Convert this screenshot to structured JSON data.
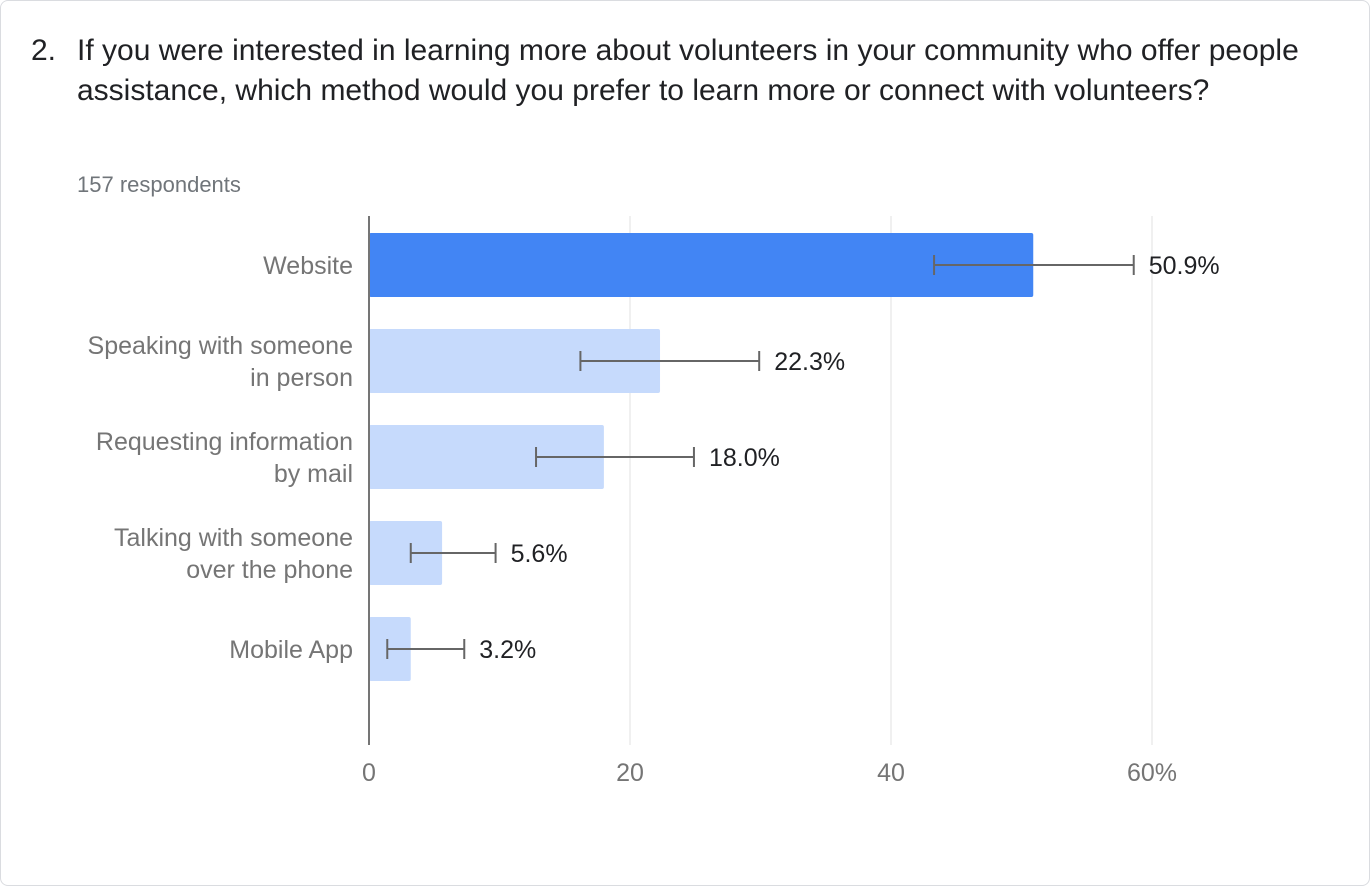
{
  "question": {
    "number": "2.",
    "text": "If you were interested in learning more about volunteers in your community who offer people assistance, which method would you prefer to learn more or connect with volunteers?"
  },
  "respondents": "157 respondents",
  "colors": {
    "highlight_bar": "#4285f4",
    "bar": "#c6dafc",
    "gridline": "#e0e0e0",
    "axis": "#757575",
    "error_bar": "#666666"
  },
  "chart_data": {
    "type": "bar",
    "orientation": "horizontal",
    "categories": [
      [
        "Website"
      ],
      [
        "Speaking with someone",
        "in person"
      ],
      [
        "Requesting information",
        "by mail"
      ],
      [
        "Talking with someone",
        "over the phone"
      ],
      [
        "Mobile App"
      ]
    ],
    "values": [
      50.9,
      22.3,
      18.0,
      5.6,
      3.2
    ],
    "data_labels": [
      "50.9%",
      "22.3%",
      "18.0%",
      "5.6%",
      "3.2%"
    ],
    "error_bars": [
      {
        "low": 43.3,
        "high": 58.6
      },
      {
        "low": 16.2,
        "high": 29.9
      },
      {
        "low": 12.8,
        "high": 24.9
      },
      {
        "low": 3.2,
        "high": 9.7
      },
      {
        "low": 1.4,
        "high": 7.3
      }
    ],
    "highlighted_index": 0,
    "xlim": [
      0,
      60
    ],
    "xticks": [
      0,
      20,
      40,
      60
    ],
    "xtick_labels": [
      "0",
      "20",
      "40",
      "60%"
    ],
    "grid": true,
    "title": "",
    "xlabel": "",
    "ylabel": ""
  }
}
